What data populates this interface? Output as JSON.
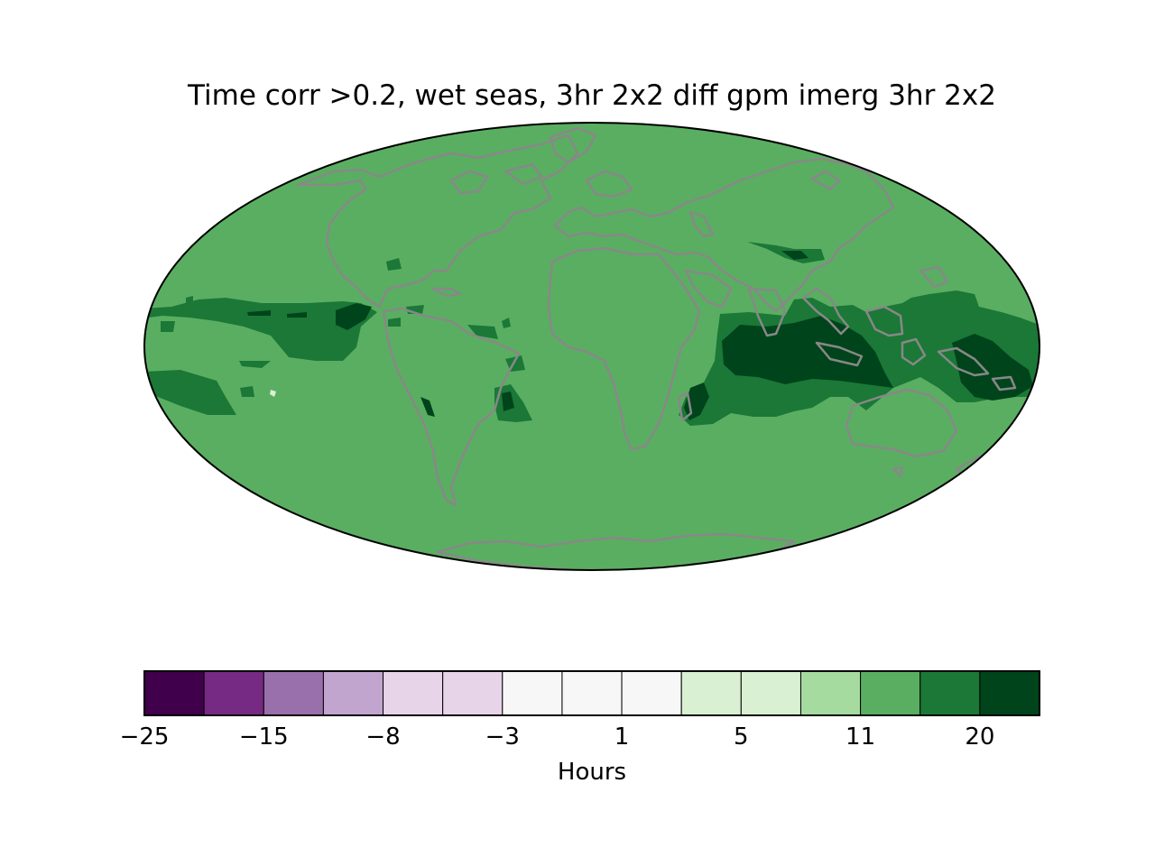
{
  "title": "Time corr >0.2, wet seas, 3hr 2x2 diff gpm imerg 3hr 2x2",
  "map": {
    "projection": "mollweide",
    "background_fill": "#5aae61",
    "coastline_color": "#888888"
  },
  "colorbar": {
    "label": "Hours",
    "colors": [
      "#40004b",
      "#762a83",
      "#9970ab",
      "#c2a5cf",
      "#e7d4e8",
      "#e7d4e8",
      "#f7f7f7",
      "#f7f7f7",
      "#f7f7f7",
      "#d9f0d3",
      "#d9f0d3",
      "#a6dba0",
      "#5aae61",
      "#1b7837",
      "#00441b"
    ],
    "tick_labels": [
      "−25",
      "−15",
      "−8",
      "−3",
      "1",
      "5",
      "11",
      "20"
    ]
  }
}
